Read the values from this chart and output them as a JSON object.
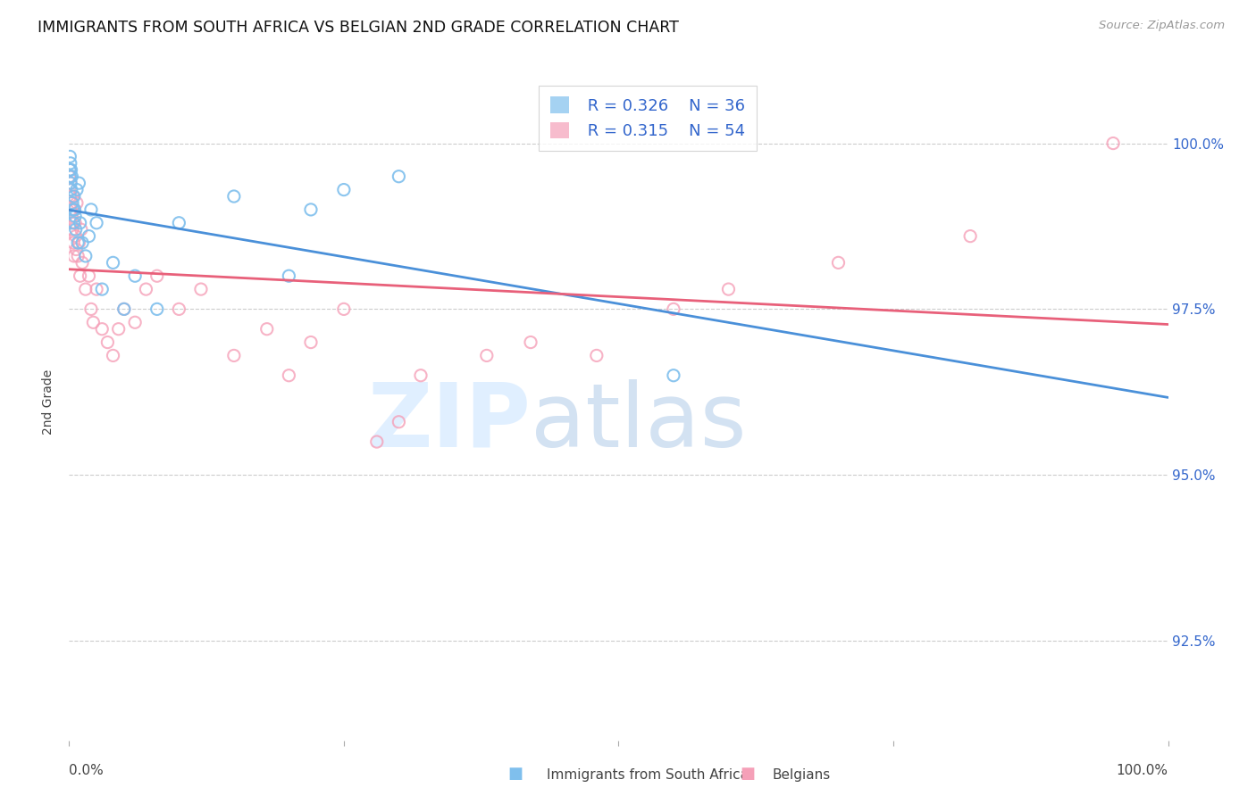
{
  "title": "IMMIGRANTS FROM SOUTH AFRICA VS BELGIAN 2ND GRADE CORRELATION CHART",
  "source": "Source: ZipAtlas.com",
  "ylabel": "2nd Grade",
  "ytick_vals": [
    92.5,
    95.0,
    97.5,
    100.0
  ],
  "xrange": [
    0.0,
    100.0
  ],
  "yrange": [
    91.0,
    101.2
  ],
  "legend_r1": "0.326",
  "legend_n1": "36",
  "legend_r2": "0.315",
  "legend_n2": "54",
  "blue_color": "#7fbfed",
  "pink_color": "#f5a0b8",
  "blue_line_color": "#4a90d9",
  "pink_line_color": "#e8607a",
  "blue_scatter_x": [
    0.05,
    0.08,
    0.1,
    0.12,
    0.15,
    0.18,
    0.2,
    0.25,
    0.3,
    0.35,
    0.4,
    0.45,
    0.5,
    0.55,
    0.6,
    0.7,
    0.8,
    0.9,
    1.0,
    1.2,
    1.5,
    1.8,
    2.0,
    2.5,
    3.0,
    4.0,
    5.0,
    6.0,
    8.0,
    10.0,
    15.0,
    20.0,
    22.0,
    25.0,
    30.0,
    55.0
  ],
  "blue_scatter_y": [
    99.6,
    99.8,
    99.5,
    99.7,
    99.4,
    99.6,
    99.3,
    99.5,
    99.1,
    99.0,
    98.8,
    99.2,
    99.0,
    98.9,
    98.7,
    99.3,
    98.5,
    99.4,
    98.8,
    98.5,
    98.3,
    98.6,
    99.0,
    98.8,
    97.8,
    98.2,
    97.5,
    98.0,
    97.5,
    98.8,
    99.2,
    98.0,
    99.0,
    99.3,
    99.5,
    96.5
  ],
  "blue_scatter_sizes": [
    80,
    80,
    80,
    80,
    80,
    80,
    80,
    80,
    80,
    80,
    80,
    80,
    80,
    80,
    80,
    80,
    80,
    80,
    80,
    80,
    80,
    80,
    80,
    80,
    80,
    80,
    80,
    80,
    80,
    80,
    80,
    80,
    80,
    80,
    80,
    80
  ],
  "pink_scatter_x": [
    0.02,
    0.05,
    0.08,
    0.1,
    0.12,
    0.15,
    0.18,
    0.2,
    0.25,
    0.3,
    0.35,
    0.4,
    0.45,
    0.5,
    0.55,
    0.6,
    0.65,
    0.7,
    0.8,
    0.9,
    1.0,
    1.1,
    1.2,
    1.5,
    1.8,
    2.0,
    2.2,
    2.5,
    3.0,
    3.5,
    4.0,
    4.5,
    5.0,
    6.0,
    7.0,
    8.0,
    10.0,
    12.0,
    15.0,
    18.0,
    20.0,
    22.0,
    25.0,
    28.0,
    30.0,
    32.0,
    38.0,
    42.0,
    48.0,
    55.0,
    60.0,
    70.0,
    82.0,
    95.0
  ],
  "pink_scatter_y": [
    99.5,
    99.3,
    99.6,
    99.2,
    99.4,
    99.0,
    98.8,
    99.1,
    98.9,
    98.7,
    99.2,
    98.5,
    98.3,
    99.0,
    98.8,
    98.6,
    98.4,
    99.1,
    98.3,
    98.5,
    98.0,
    98.7,
    98.2,
    97.8,
    98.0,
    97.5,
    97.3,
    97.8,
    97.2,
    97.0,
    96.8,
    97.2,
    97.5,
    97.3,
    97.8,
    98.0,
    97.5,
    97.8,
    96.8,
    97.2,
    96.5,
    97.0,
    97.5,
    95.5,
    95.8,
    96.5,
    96.8,
    97.0,
    96.8,
    97.5,
    97.8,
    98.2,
    98.6,
    100.0
  ],
  "pink_scatter_sizes": [
    80,
    80,
    80,
    80,
    80,
    80,
    80,
    80,
    80,
    80,
    80,
    80,
    80,
    80,
    80,
    80,
    80,
    80,
    80,
    80,
    80,
    80,
    80,
    80,
    80,
    80,
    80,
    80,
    80,
    80,
    80,
    80,
    80,
    80,
    80,
    80,
    80,
    80,
    80,
    80,
    80,
    80,
    80,
    80,
    80,
    80,
    80,
    80,
    80,
    80,
    80,
    80,
    80,
    80
  ]
}
